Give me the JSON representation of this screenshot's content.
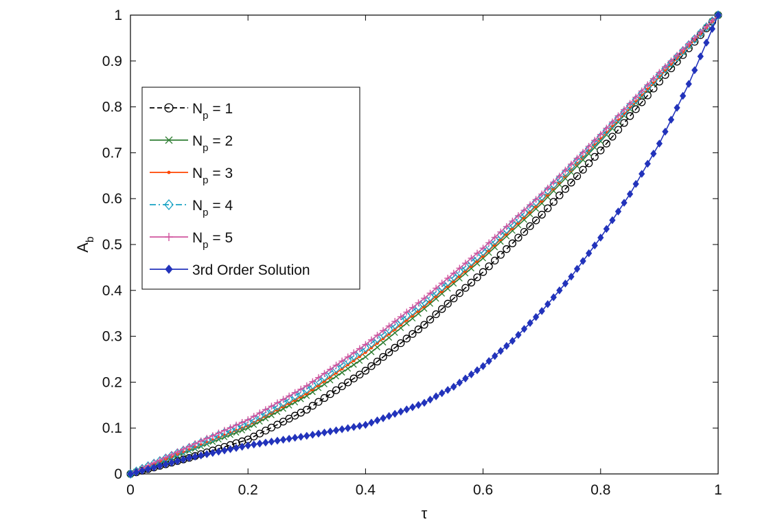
{
  "chart_data": {
    "type": "line",
    "title": "",
    "xlabel": "τ",
    "ylabel": "A",
    "ylabel_subscript": "b",
    "xlim": [
      0,
      1
    ],
    "ylim": [
      0,
      1
    ],
    "xticks": [
      "0",
      "0.2",
      "0.4",
      "0.6",
      "0.8",
      "1"
    ],
    "yticks": [
      "0",
      "0.1",
      "0.2",
      "0.3",
      "0.4",
      "0.5",
      "0.6",
      "0.7",
      "0.8",
      "0.9",
      "1"
    ],
    "grid": false,
    "legend_position": "upper-left",
    "series": [
      {
        "name": "N = 1",
        "name_base": "N",
        "name_sub": "p",
        "name_rest": " = 1",
        "color": "#000000",
        "dash": "dashed",
        "marker": "circle",
        "x": [
          0,
          0.1,
          0.2,
          0.3,
          0.4,
          0.5,
          0.6,
          0.7,
          0.8,
          0.9,
          1.0
        ],
        "y": [
          0,
          0.035,
          0.075,
          0.14,
          0.225,
          0.325,
          0.44,
          0.565,
          0.705,
          0.855,
          1.0
        ]
      },
      {
        "name": "N = 2",
        "name_base": "N",
        "name_sub": "p",
        "name_rest": " = 2",
        "color": "#2e7d32",
        "dash": "solid",
        "marker": "x",
        "x": [
          0,
          0.1,
          0.2,
          0.3,
          0.4,
          0.5,
          0.6,
          0.7,
          0.8,
          0.9,
          1.0
        ],
        "y": [
          0,
          0.05,
          0.1,
          0.17,
          0.255,
          0.36,
          0.47,
          0.59,
          0.725,
          0.865,
          1.0
        ]
      },
      {
        "name": "N = 3",
        "name_base": "N",
        "name_sub": "p",
        "name_rest": " = 3",
        "color": "#ff4500",
        "dash": "solid",
        "marker": "dot",
        "x": [
          0,
          0.1,
          0.2,
          0.3,
          0.4,
          0.5,
          0.6,
          0.7,
          0.8,
          0.9,
          1.0
        ],
        "y": [
          0,
          0.053,
          0.105,
          0.175,
          0.265,
          0.365,
          0.475,
          0.595,
          0.73,
          0.865,
          1.0
        ]
      },
      {
        "name": "N = 4",
        "name_base": "N",
        "name_sub": "p",
        "name_rest": " = 4",
        "color": "#17a2c4",
        "dash": "dashdot",
        "marker": "diamond",
        "x": [
          0,
          0.1,
          0.2,
          0.3,
          0.4,
          0.5,
          0.6,
          0.7,
          0.8,
          0.9,
          1.0
        ],
        "y": [
          0,
          0.057,
          0.112,
          0.185,
          0.275,
          0.375,
          0.485,
          0.605,
          0.735,
          0.87,
          1.0
        ]
      },
      {
        "name": "N = 5",
        "name_base": "N",
        "name_sub": "p",
        "name_rest": " = 5",
        "color": "#d1549e",
        "dash": "solid",
        "marker": "plus",
        "x": [
          0,
          0.1,
          0.2,
          0.3,
          0.4,
          0.5,
          0.6,
          0.7,
          0.8,
          0.9,
          1.0
        ],
        "y": [
          0,
          0.06,
          0.118,
          0.192,
          0.282,
          0.383,
          0.492,
          0.61,
          0.74,
          0.875,
          1.0
        ]
      },
      {
        "name": "3rd Order Solution",
        "name_base": "3rd Order Solution",
        "name_sub": "",
        "name_rest": "",
        "color": "#2233bb",
        "dash": "solid",
        "marker": "filled-diamond",
        "x": [
          0,
          0.1,
          0.2,
          0.3,
          0.4,
          0.5,
          0.55,
          0.6,
          0.65,
          0.7,
          0.75,
          0.8,
          0.85,
          0.9,
          0.95,
          1.0
        ],
        "y": [
          0,
          0.035,
          0.062,
          0.083,
          0.107,
          0.155,
          0.19,
          0.235,
          0.29,
          0.355,
          0.43,
          0.515,
          0.61,
          0.72,
          0.85,
          1.0
        ]
      }
    ]
  }
}
